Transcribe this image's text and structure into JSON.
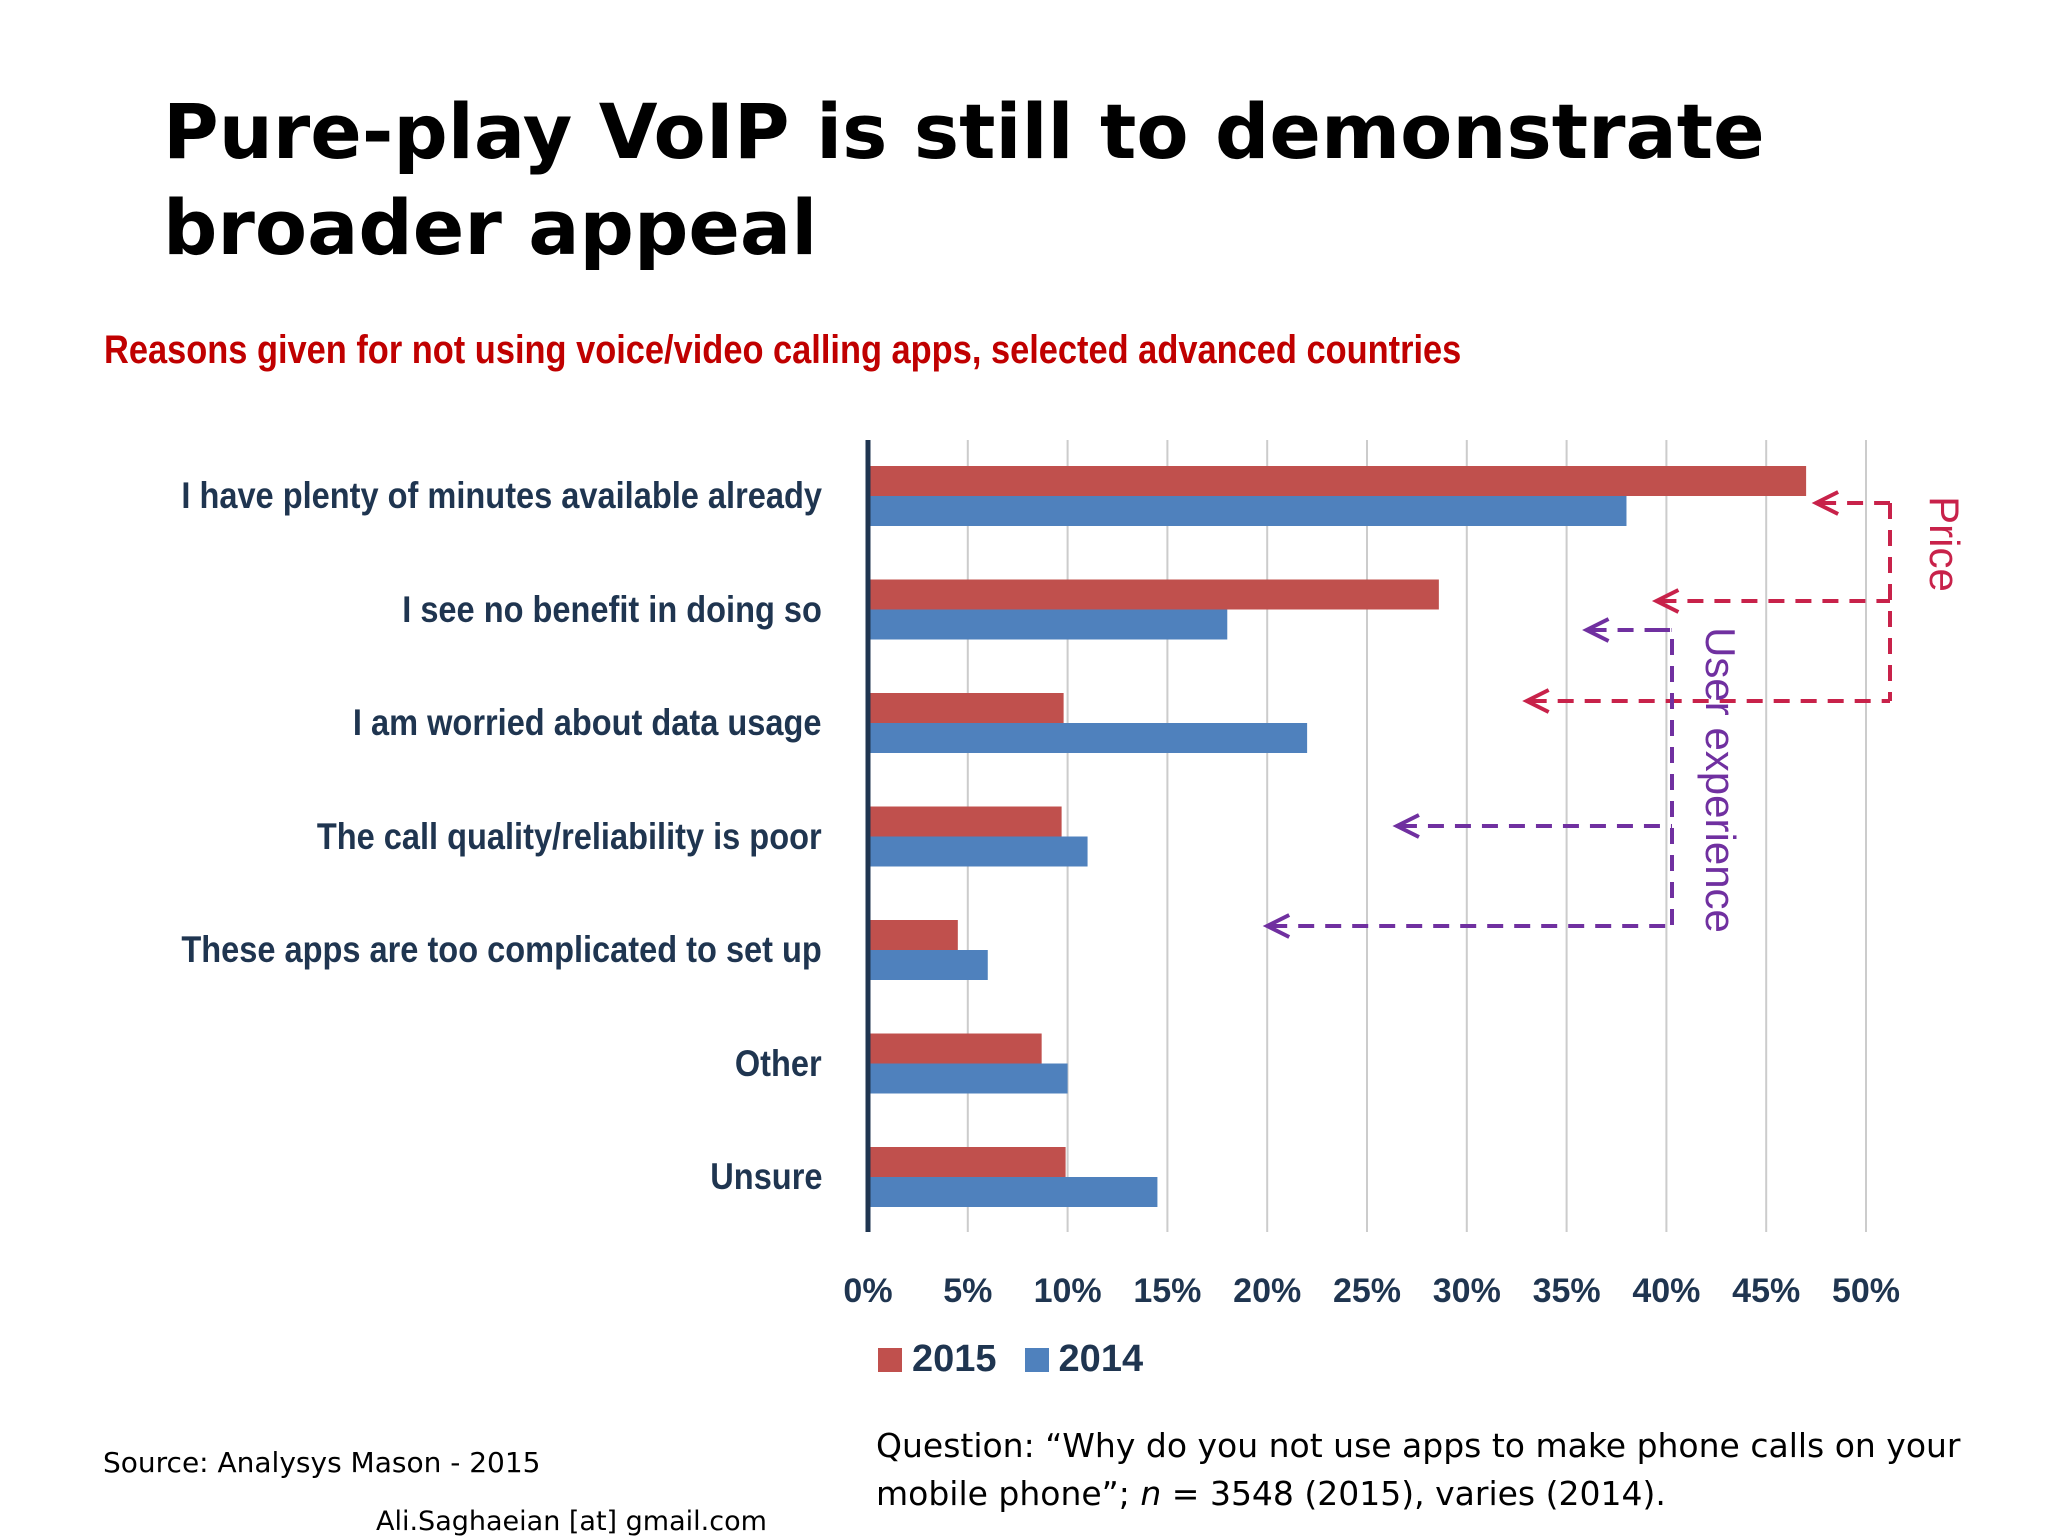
{
  "slide": {
    "title": "Pure-play VoIP is still to demonstrate broader appeal",
    "source": "Source: Analysys Mason - 2015",
    "email": "Ali.Saghaeian [at] gmail.com",
    "question_part1": "Question: “Why do you not use apps to make phone calls on your mobile phone”; ",
    "question_n": "n",
    "question_part2": " = 3548 (2015), varies (2014)."
  },
  "colors": {
    "s2015": "#c0504d",
    "s2014": "#4f81bd",
    "price": "#c8224a",
    "ux": "#7030a0",
    "axis": "#1f3550",
    "grid": "#cccccc"
  },
  "chart_data": {
    "type": "bar",
    "orientation": "horizontal",
    "title": "Reasons given for not using voice/video calling apps, selected advanced countries",
    "categories": [
      "I have plenty of minutes available already",
      "I see no benefit in doing so",
      "I am worried about data usage",
      "The call quality/reliability is poor",
      "These apps are too complicated to set up",
      "Other",
      "Unsure"
    ],
    "series": [
      {
        "name": "2015",
        "values": [
          47,
          28.6,
          9.8,
          9.7,
          4.5,
          8.7,
          9.9
        ]
      },
      {
        "name": "2014",
        "values": [
          38,
          18,
          22,
          11,
          6,
          10,
          14.5
        ]
      }
    ],
    "xlim": [
      0,
      50
    ],
    "ticks": [
      "0%",
      "5%",
      "10%",
      "15%",
      "20%",
      "25%",
      "30%",
      "35%",
      "40%",
      "45%",
      "50%"
    ],
    "grid": true,
    "legend": "bottom",
    "annotations": [
      {
        "label": "Price",
        "categories": [
          "I have plenty of minutes available already",
          "I see no benefit in doing so",
          "I am worried about data usage"
        ]
      },
      {
        "label": "User experience",
        "categories": [
          "I see no benefit in doing so",
          "The call quality/reliability is poor",
          "These apps are too complicated to set up"
        ]
      }
    ]
  }
}
